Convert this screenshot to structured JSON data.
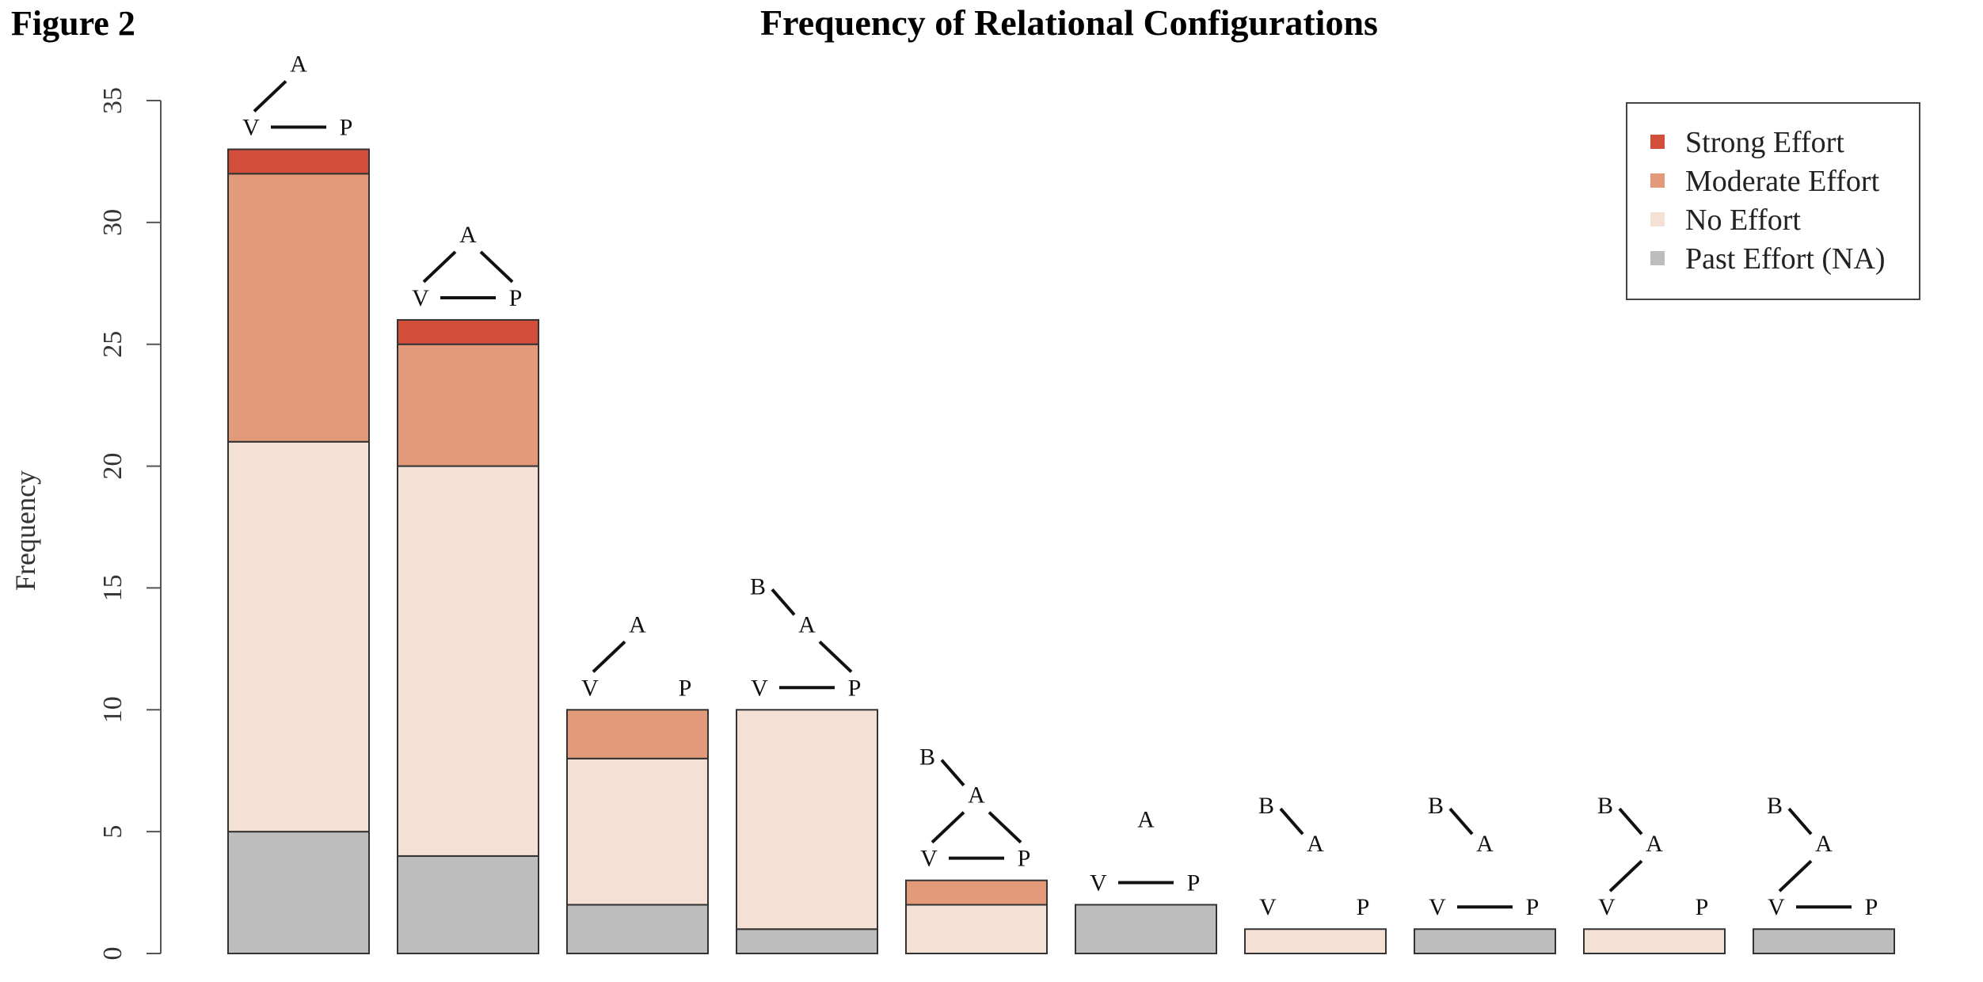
{
  "figure_label": "Figure 2",
  "chart_data": {
    "type": "bar",
    "stacked": true,
    "title": "Frequency of Relational Configurations",
    "xlabel": "",
    "ylabel": "Frequency",
    "ylim": [
      0,
      35
    ],
    "yticks": [
      0,
      5,
      10,
      15,
      20,
      25,
      30,
      35
    ],
    "grid": false,
    "legend_position": "top-right",
    "categories": [
      "A–V, V–P",
      "A–V, A–P, V–P",
      "A–V",
      "B–A, A–P, V–P",
      "B–A, A–V, A–P, V–P",
      "V–P",
      "B–A",
      "B–A, V–P",
      "B–A, A–V",
      "B–A, A–V, V–P"
    ],
    "series": [
      {
        "name": "Past Effort (NA)",
        "color": "#bdbdbd",
        "values": [
          5,
          4,
          2,
          1,
          0,
          2,
          0,
          1,
          0,
          1
        ]
      },
      {
        "name": "No Effort",
        "color": "#f5e0d6",
        "values": [
          16,
          16,
          6,
          9,
          2,
          0,
          1,
          0,
          1,
          0
        ]
      },
      {
        "name": "Moderate Effort",
        "color": "#e39a7b",
        "values": [
          11,
          5,
          2,
          0,
          1,
          0,
          0,
          0,
          0,
          0
        ]
      },
      {
        "name": "Strong Effort",
        "color": "#d34d3b",
        "values": [
          1,
          1,
          0,
          0,
          0,
          0,
          0,
          0,
          0,
          0
        ]
      }
    ],
    "legend_order": [
      "Strong Effort",
      "Moderate Effort",
      "No Effort",
      "Past Effort (NA)"
    ],
    "node_labels": {
      "a": "A",
      "b": "B",
      "v": "V",
      "p": "P"
    },
    "configurations": [
      {
        "a": true,
        "b": false,
        "ab": false,
        "av": true,
        "ap": false,
        "vp": true
      },
      {
        "a": true,
        "b": false,
        "ab": false,
        "av": true,
        "ap": true,
        "vp": true
      },
      {
        "a": true,
        "b": false,
        "ab": false,
        "av": true,
        "ap": false,
        "vp": false
      },
      {
        "a": true,
        "b": true,
        "ab": true,
        "av": false,
        "ap": true,
        "vp": true
      },
      {
        "a": true,
        "b": true,
        "ab": true,
        "av": true,
        "ap": true,
        "vp": true
      },
      {
        "a": true,
        "b": false,
        "ab": false,
        "av": false,
        "ap": false,
        "vp": true
      },
      {
        "a": true,
        "b": true,
        "ab": true,
        "av": false,
        "ap": false,
        "vp": false
      },
      {
        "a": true,
        "b": true,
        "ab": true,
        "av": false,
        "ap": false,
        "vp": true
      },
      {
        "a": true,
        "b": true,
        "ab": true,
        "av": true,
        "ap": false,
        "vp": false
      },
      {
        "a": true,
        "b": true,
        "ab": true,
        "av": true,
        "ap": false,
        "vp": true
      }
    ]
  }
}
